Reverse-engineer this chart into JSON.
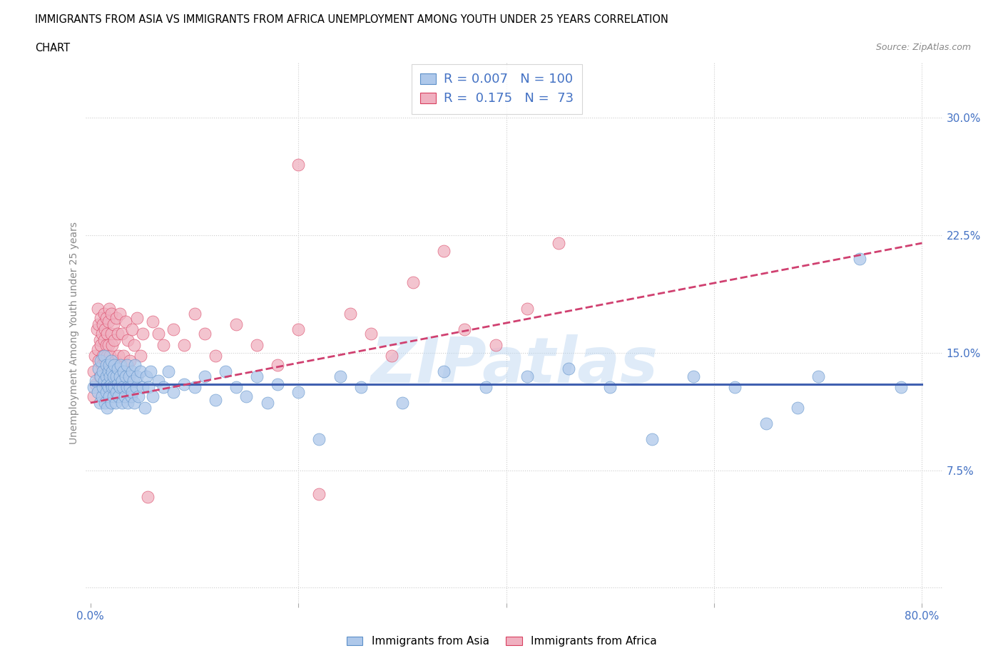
{
  "title_line1": "IMMIGRANTS FROM ASIA VS IMMIGRANTS FROM AFRICA UNEMPLOYMENT AMONG YOUTH UNDER 25 YEARS CORRELATION",
  "title_line2": "CHART",
  "source_text": "Source: ZipAtlas.com",
  "ylabel": "Unemployment Among Youth under 25 years",
  "xlim": [
    -0.005,
    0.82
  ],
  "ylim": [
    -0.01,
    0.335
  ],
  "yticks": [
    0.0,
    0.075,
    0.15,
    0.225,
    0.3
  ],
  "ytick_labels": [
    "",
    "7.5%",
    "15.0%",
    "22.5%",
    "30.0%"
  ],
  "xticks": [
    0.0,
    0.2,
    0.4,
    0.6,
    0.8
  ],
  "xtick_labels": [
    "0.0%",
    "",
    "",
    "",
    "80.0%"
  ],
  "color_asia_fill": "#aec8ea",
  "color_asia_edge": "#5b8fc8",
  "color_africa_fill": "#f0b0c0",
  "color_africa_edge": "#d94060",
  "color_trend_asia": "#4060b0",
  "color_trend_africa": "#d04070",
  "color_text_blue": "#4472c4",
  "background_color": "#ffffff",
  "watermark_text": "ZIPatlas",
  "legend_text_asia": "R = 0.007   N = 100",
  "legend_text_africa": "R =  0.175   N =  73",
  "legend_label_asia": "Immigrants from Asia",
  "legend_label_africa": "Immigrants from Africa",
  "asia_x": [
    0.003,
    0.005,
    0.007,
    0.008,
    0.009,
    0.01,
    0.01,
    0.011,
    0.012,
    0.012,
    0.013,
    0.013,
    0.014,
    0.015,
    0.015,
    0.015,
    0.016,
    0.016,
    0.017,
    0.017,
    0.018,
    0.018,
    0.019,
    0.02,
    0.02,
    0.02,
    0.021,
    0.021,
    0.022,
    0.022,
    0.023,
    0.023,
    0.024,
    0.025,
    0.025,
    0.026,
    0.026,
    0.027,
    0.028,
    0.028,
    0.029,
    0.03,
    0.03,
    0.031,
    0.032,
    0.033,
    0.034,
    0.035,
    0.035,
    0.036,
    0.037,
    0.038,
    0.039,
    0.04,
    0.04,
    0.041,
    0.042,
    0.043,
    0.044,
    0.045,
    0.046,
    0.048,
    0.05,
    0.052,
    0.054,
    0.056,
    0.058,
    0.06,
    0.065,
    0.07,
    0.075,
    0.08,
    0.09,
    0.1,
    0.11,
    0.12,
    0.13,
    0.14,
    0.15,
    0.16,
    0.17,
    0.18,
    0.2,
    0.22,
    0.24,
    0.26,
    0.3,
    0.34,
    0.38,
    0.42,
    0.46,
    0.5,
    0.54,
    0.58,
    0.62,
    0.65,
    0.68,
    0.7,
    0.74,
    0.78
  ],
  "asia_y": [
    0.128,
    0.132,
    0.125,
    0.14,
    0.118,
    0.135,
    0.145,
    0.122,
    0.138,
    0.128,
    0.132,
    0.148,
    0.118,
    0.135,
    0.125,
    0.142,
    0.13,
    0.115,
    0.138,
    0.128,
    0.142,
    0.122,
    0.135,
    0.13,
    0.118,
    0.145,
    0.128,
    0.138,
    0.122,
    0.135,
    0.128,
    0.142,
    0.118,
    0.135,
    0.125,
    0.13,
    0.14,
    0.122,
    0.135,
    0.128,
    0.142,
    0.118,
    0.132,
    0.128,
    0.138,
    0.122,
    0.135,
    0.128,
    0.142,
    0.118,
    0.135,
    0.128,
    0.122,
    0.138,
    0.125,
    0.132,
    0.118,
    0.142,
    0.128,
    0.135,
    0.122,
    0.138,
    0.128,
    0.115,
    0.135,
    0.128,
    0.138,
    0.122,
    0.132,
    0.128,
    0.138,
    0.125,
    0.13,
    0.128,
    0.135,
    0.12,
    0.138,
    0.128,
    0.122,
    0.135,
    0.118,
    0.13,
    0.125,
    0.095,
    0.135,
    0.128,
    0.118,
    0.138,
    0.128,
    0.135,
    0.14,
    0.128,
    0.095,
    0.135,
    0.128,
    0.105,
    0.115,
    0.135,
    0.21,
    0.128
  ],
  "africa_x": [
    0.003,
    0.003,
    0.004,
    0.005,
    0.006,
    0.007,
    0.007,
    0.008,
    0.008,
    0.009,
    0.009,
    0.01,
    0.01,
    0.011,
    0.011,
    0.012,
    0.012,
    0.013,
    0.013,
    0.014,
    0.014,
    0.015,
    0.015,
    0.016,
    0.016,
    0.017,
    0.017,
    0.018,
    0.019,
    0.02,
    0.02,
    0.021,
    0.022,
    0.023,
    0.024,
    0.025,
    0.026,
    0.027,
    0.028,
    0.03,
    0.032,
    0.034,
    0.036,
    0.038,
    0.04,
    0.042,
    0.045,
    0.048,
    0.05,
    0.055,
    0.06,
    0.065,
    0.07,
    0.08,
    0.09,
    0.1,
    0.11,
    0.12,
    0.14,
    0.16,
    0.18,
    0.2,
    0.22,
    0.25,
    0.27,
    0.29,
    0.31,
    0.34,
    0.36,
    0.39,
    0.42,
    0.45,
    0.2
  ],
  "africa_y": [
    0.122,
    0.138,
    0.148,
    0.13,
    0.165,
    0.152,
    0.178,
    0.145,
    0.168,
    0.135,
    0.158,
    0.155,
    0.172,
    0.142,
    0.162,
    0.168,
    0.148,
    0.158,
    0.175,
    0.145,
    0.165,
    0.155,
    0.172,
    0.148,
    0.162,
    0.17,
    0.155,
    0.178,
    0.148,
    0.162,
    0.175,
    0.155,
    0.168,
    0.158,
    0.145,
    0.172,
    0.162,
    0.148,
    0.175,
    0.162,
    0.148,
    0.17,
    0.158,
    0.145,
    0.165,
    0.155,
    0.172,
    0.148,
    0.162,
    0.058,
    0.17,
    0.162,
    0.155,
    0.165,
    0.155,
    0.175,
    0.162,
    0.148,
    0.168,
    0.155,
    0.142,
    0.165,
    0.06,
    0.175,
    0.162,
    0.148,
    0.195,
    0.215,
    0.165,
    0.155,
    0.178,
    0.22,
    0.27
  ]
}
